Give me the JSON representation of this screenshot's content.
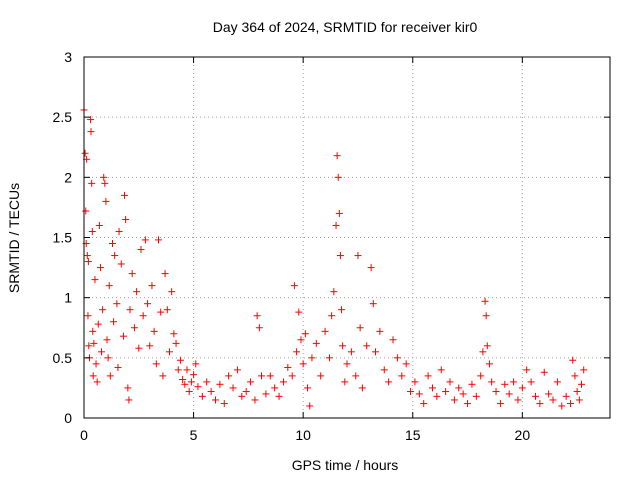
{
  "chart_data": {
    "type": "scatter",
    "title": "Day 364 of 2024, SRMTID for receiver kir0",
    "xlabel": "GPS time / hours",
    "ylabel": "SRMTID / TECUs",
    "xlim": [
      0,
      24
    ],
    "ylim": [
      0,
      3
    ],
    "x_ticks": [
      "0",
      "5",
      "10",
      "15",
      "20"
    ],
    "x_tick_values": [
      0,
      5,
      10,
      15,
      20
    ],
    "y_ticks": [
      "0",
      "0.5",
      "1",
      "1.5",
      "2",
      "2.5",
      "3"
    ],
    "y_tick_values": [
      0,
      0.5,
      1,
      1.5,
      2,
      2.5,
      3
    ],
    "grid": true,
    "marker": "+",
    "marker_color": "#ff0000",
    "series": [
      {
        "name": "kir0",
        "points": [
          [
            0.0,
            2.56
          ],
          [
            0.05,
            2.2
          ],
          [
            0.08,
            1.72
          ],
          [
            0.1,
            1.45
          ],
          [
            0.12,
            2.15
          ],
          [
            0.15,
            1.35
          ],
          [
            0.18,
            0.85
          ],
          [
            0.2,
            1.3
          ],
          [
            0.22,
            0.6
          ],
          [
            0.25,
            0.5
          ],
          [
            0.3,
            2.48
          ],
          [
            0.32,
            2.38
          ],
          [
            0.35,
            1.95
          ],
          [
            0.38,
            1.55
          ],
          [
            0.4,
            0.72
          ],
          [
            0.42,
            0.35
          ],
          [
            0.45,
            0.62
          ],
          [
            0.5,
            1.15
          ],
          [
            0.55,
            0.45
          ],
          [
            0.6,
            0.3
          ],
          [
            0.65,
            0.78
          ],
          [
            0.7,
            1.6
          ],
          [
            0.75,
            1.25
          ],
          [
            0.8,
            0.55
          ],
          [
            0.85,
            0.9
          ],
          [
            0.9,
            2.0
          ],
          [
            0.95,
            1.95
          ],
          [
            1.0,
            1.8
          ],
          [
            1.05,
            0.65
          ],
          [
            1.1,
            0.5
          ],
          [
            1.15,
            1.1
          ],
          [
            1.2,
            0.35
          ],
          [
            1.3,
            1.45
          ],
          [
            1.35,
            0.8
          ],
          [
            1.4,
            1.35
          ],
          [
            1.5,
            0.95
          ],
          [
            1.55,
            0.42
          ],
          [
            1.6,
            1.55
          ],
          [
            1.7,
            1.28
          ],
          [
            1.8,
            0.68
          ],
          [
            1.85,
            1.85
          ],
          [
            1.9,
            1.65
          ],
          [
            2.0,
            0.25
          ],
          [
            2.05,
            0.15
          ],
          [
            2.1,
            0.9
          ],
          [
            2.2,
            1.2
          ],
          [
            2.3,
            0.75
          ],
          [
            2.4,
            1.05
          ],
          [
            2.5,
            0.58
          ],
          [
            2.6,
            1.4
          ],
          [
            2.7,
            0.85
          ],
          [
            2.8,
            1.48
          ],
          [
            2.9,
            0.95
          ],
          [
            3.0,
            0.6
          ],
          [
            3.1,
            1.1
          ],
          [
            3.2,
            0.72
          ],
          [
            3.3,
            0.45
          ],
          [
            3.4,
            1.48
          ],
          [
            3.5,
            0.88
          ],
          [
            3.6,
            0.35
          ],
          [
            3.7,
            1.2
          ],
          [
            3.8,
            0.9
          ],
          [
            3.9,
            0.55
          ],
          [
            4.0,
            1.05
          ],
          [
            4.1,
            0.7
          ],
          [
            4.2,
            0.62
          ],
          [
            4.3,
            0.4
          ],
          [
            4.4,
            0.48
          ],
          [
            4.5,
            0.32
          ],
          [
            4.6,
            0.28
          ],
          [
            4.7,
            0.4
          ],
          [
            4.8,
            0.22
          ],
          [
            4.9,
            0.3
          ],
          [
            5.0,
            0.36
          ],
          [
            5.1,
            0.45
          ],
          [
            5.2,
            0.26
          ],
          [
            5.4,
            0.18
          ],
          [
            5.6,
            0.3
          ],
          [
            5.8,
            0.22
          ],
          [
            6.0,
            0.15
          ],
          [
            6.2,
            0.28
          ],
          [
            6.4,
            0.12
          ],
          [
            6.6,
            0.35
          ],
          [
            6.8,
            0.25
          ],
          [
            7.0,
            0.4
          ],
          [
            7.2,
            0.18
          ],
          [
            7.4,
            0.22
          ],
          [
            7.6,
            0.3
          ],
          [
            7.8,
            0.15
          ],
          [
            7.9,
            0.85
          ],
          [
            8.0,
            0.75
          ],
          [
            8.1,
            0.35
          ],
          [
            8.3,
            0.2
          ],
          [
            8.5,
            0.35
          ],
          [
            8.7,
            0.25
          ],
          [
            8.9,
            0.18
          ],
          [
            9.1,
            0.3
          ],
          [
            9.3,
            0.42
          ],
          [
            9.5,
            0.35
          ],
          [
            9.6,
            1.1
          ],
          [
            9.7,
            0.55
          ],
          [
            9.8,
            0.88
          ],
          [
            9.9,
            0.65
          ],
          [
            10.0,
            0.45
          ],
          [
            10.1,
            0.7
          ],
          [
            10.2,
            0.25
          ],
          [
            10.3,
            0.1
          ],
          [
            10.4,
            0.5
          ],
          [
            10.6,
            0.62
          ],
          [
            10.8,
            0.35
          ],
          [
            11.0,
            0.72
          ],
          [
            11.2,
            0.5
          ],
          [
            11.3,
            0.85
          ],
          [
            11.4,
            1.05
          ],
          [
            11.5,
            1.6
          ],
          [
            11.55,
            2.18
          ],
          [
            11.6,
            2.0
          ],
          [
            11.65,
            1.7
          ],
          [
            11.7,
            1.35
          ],
          [
            11.75,
            0.9
          ],
          [
            11.8,
            0.6
          ],
          [
            11.9,
            0.3
          ],
          [
            12.0,
            0.45
          ],
          [
            12.2,
            0.55
          ],
          [
            12.4,
            0.35
          ],
          [
            12.5,
            1.35
          ],
          [
            12.6,
            0.75
          ],
          [
            12.7,
            0.25
          ],
          [
            12.9,
            0.6
          ],
          [
            13.1,
            1.25
          ],
          [
            13.2,
            0.95
          ],
          [
            13.3,
            0.55
          ],
          [
            13.5,
            0.72
          ],
          [
            13.7,
            0.4
          ],
          [
            13.9,
            0.3
          ],
          [
            14.1,
            0.65
          ],
          [
            14.3,
            0.5
          ],
          [
            14.5,
            0.35
          ],
          [
            14.7,
            0.45
          ],
          [
            14.9,
            0.22
          ],
          [
            15.1,
            0.3
          ],
          [
            15.3,
            0.2
          ],
          [
            15.5,
            0.12
          ],
          [
            15.7,
            0.35
          ],
          [
            15.9,
            0.25
          ],
          [
            16.1,
            0.18
          ],
          [
            16.3,
            0.4
          ],
          [
            16.5,
            0.22
          ],
          [
            16.7,
            0.3
          ],
          [
            16.9,
            0.15
          ],
          [
            17.1,
            0.25
          ],
          [
            17.3,
            0.2
          ],
          [
            17.5,
            0.12
          ],
          [
            17.7,
            0.28
          ],
          [
            17.9,
            0.18
          ],
          [
            18.1,
            0.35
          ],
          [
            18.2,
            0.55
          ],
          [
            18.3,
            0.97
          ],
          [
            18.35,
            0.85
          ],
          [
            18.4,
            0.6
          ],
          [
            18.5,
            0.45
          ],
          [
            18.6,
            0.3
          ],
          [
            18.8,
            0.22
          ],
          [
            19.0,
            0.12
          ],
          [
            19.2,
            0.28
          ],
          [
            19.4,
            0.2
          ],
          [
            19.6,
            0.3
          ],
          [
            19.8,
            0.15
          ],
          [
            20.0,
            0.25
          ],
          [
            20.2,
            0.4
          ],
          [
            20.4,
            0.3
          ],
          [
            20.6,
            0.18
          ],
          [
            20.8,
            0.12
          ],
          [
            21.0,
            0.38
          ],
          [
            21.2,
            0.2
          ],
          [
            21.4,
            0.15
          ],
          [
            21.6,
            0.3
          ],
          [
            21.8,
            0.1
          ],
          [
            22.0,
            0.18
          ],
          [
            22.2,
            0.12
          ],
          [
            22.3,
            0.48
          ],
          [
            22.4,
            0.35
          ],
          [
            22.5,
            0.22
          ],
          [
            22.6,
            0.15
          ],
          [
            22.7,
            0.28
          ],
          [
            22.8,
            0.4
          ]
        ]
      }
    ]
  }
}
